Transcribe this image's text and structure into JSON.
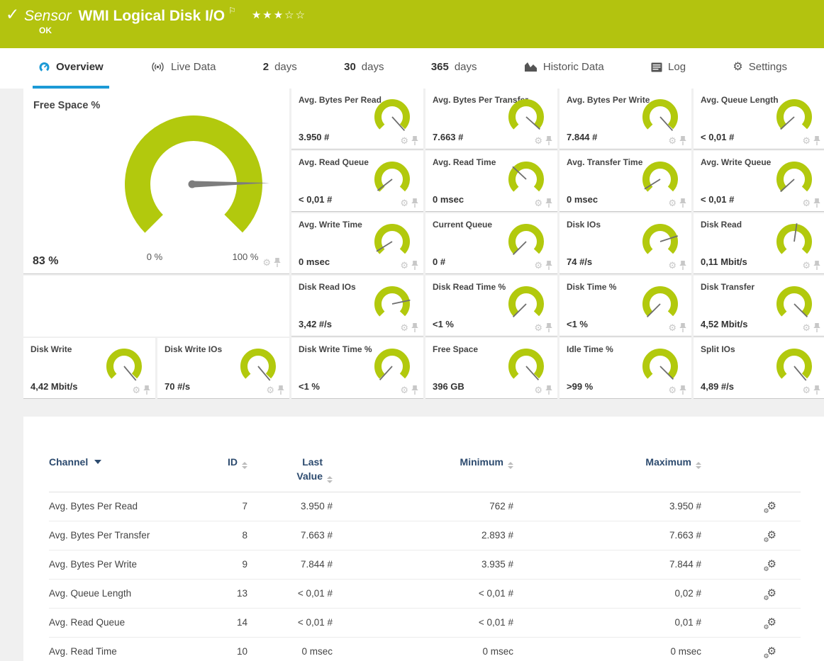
{
  "header": {
    "check_icon": "✓",
    "kind": "Sensor",
    "title": "WMI Logical Disk I/O",
    "flag_icon": "⚐",
    "stars": "★★★☆☆",
    "status": "OK"
  },
  "tabs": {
    "overview": "Overview",
    "live_data": "Live Data",
    "days2_num": "2",
    "days2_label": "days",
    "days30_num": "30",
    "days30_label": "days",
    "days365_num": "365",
    "days365_label": "days",
    "historic": "Historic Data",
    "log": "Log",
    "settings": "Settings"
  },
  "free_space_gauge": {
    "title": "Free Space %",
    "value": "83 %",
    "scale_min": "0 %",
    "scale_max": "100 %",
    "needle_deg": 89
  },
  "gauges": [
    {
      "title": "Avg. Bytes Per Read",
      "value": "3.950 #",
      "needle_deg": 138
    },
    {
      "title": "Avg. Bytes Per Transfer",
      "value": "7.663 #",
      "needle_deg": 132
    },
    {
      "title": "Avg. Bytes Per Write",
      "value": "7.844 #",
      "needle_deg": 138
    },
    {
      "title": "Avg. Queue Length",
      "value": "< 0,01 #",
      "needle_deg": -132
    },
    {
      "title": "Avg. Read Queue",
      "value": "< 0,01 #",
      "needle_deg": -128
    },
    {
      "title": "Avg. Read Time",
      "value": "0 msec",
      "needle_deg": -47
    },
    {
      "title": "Avg. Transfer Time",
      "value": "0 msec",
      "needle_deg": -122
    },
    {
      "title": "Avg. Write Queue",
      "value": "< 0,01 #",
      "needle_deg": -132
    },
    {
      "title": "Avg. Write Time",
      "value": "0 msec",
      "needle_deg": -122
    },
    {
      "title": "Current Queue",
      "value": "0 #",
      "needle_deg": -135
    },
    {
      "title": "Disk IOs",
      "value": "74 #/s",
      "needle_deg": 72
    },
    {
      "title": "Disk Read",
      "value": "0,11 Mbit/s",
      "needle_deg": 8
    },
    {
      "title": "Disk Read IOs",
      "value": "3,42 #/s",
      "needle_deg": 78
    },
    {
      "title": "Disk Read Time %",
      "value": "<1 %",
      "needle_deg": -135
    },
    {
      "title": "Disk Time %",
      "value": "<1 %",
      "needle_deg": -135
    },
    {
      "title": "Disk Transfer",
      "value": "4,52 Mbit/s",
      "needle_deg": 135
    },
    {
      "title": "Disk Write",
      "value": "4,42 Mbit/s",
      "needle_deg": 140
    },
    {
      "title": "Disk Write IOs",
      "value": "70 #/s",
      "needle_deg": 140
    },
    {
      "title": "Disk Write Time %",
      "value": "<1 %",
      "needle_deg": -138
    },
    {
      "title": "Free Space",
      "value": "396 GB",
      "needle_deg": 138
    },
    {
      "title": "Idle Time %",
      "value": ">99 %",
      "needle_deg": 135
    },
    {
      "title": "Split IOs",
      "value": "4,89 #/s",
      "needle_deg": 140
    }
  ],
  "table": {
    "headers": {
      "channel": "Channel",
      "id": "ID",
      "last_value": "Last Value",
      "minimum": "Minimum",
      "maximum": "Maximum"
    },
    "rows": [
      {
        "channel": "Avg. Bytes Per Read",
        "id": "7",
        "last": "3.950 #",
        "min": "762 #",
        "max": "3.950 #"
      },
      {
        "channel": "Avg. Bytes Per Transfer",
        "id": "8",
        "last": "7.663 #",
        "min": "2.893 #",
        "max": "7.663 #"
      },
      {
        "channel": "Avg. Bytes Per Write",
        "id": "9",
        "last": "7.844 #",
        "min": "3.935 #",
        "max": "7.844 #"
      },
      {
        "channel": "Avg. Queue Length",
        "id": "13",
        "last": "< 0,01 #",
        "min": "< 0,01 #",
        "max": "0,02 #"
      },
      {
        "channel": "Avg. Read Queue",
        "id": "14",
        "last": "< 0,01 #",
        "min": "< 0,01 #",
        "max": "0,01 #"
      },
      {
        "channel": "Avg. Read Time",
        "id": "10",
        "last": "0 msec",
        "min": "0 msec",
        "max": "0 msec"
      }
    ]
  },
  "colors": {
    "header_green": "#b3c30f",
    "gauge_green": "#b2c90d",
    "accent_blue": "#1c9ad6",
    "table_header_blue": "#2c4a6e",
    "needle_gray": "#6e6e6e",
    "big_needle_gray": "#7d7d7d"
  }
}
